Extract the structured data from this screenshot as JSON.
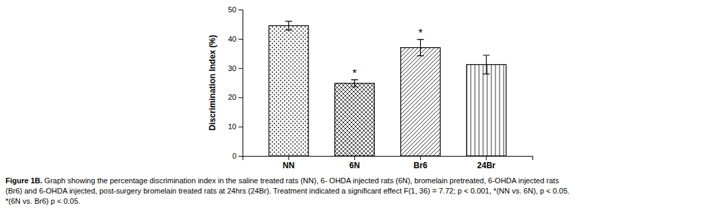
{
  "chart_data": {
    "type": "bar",
    "categories": [
      "NN",
      "6N",
      "Br6",
      "24Br"
    ],
    "values": [
      44.5,
      24.8,
      37.0,
      31.2
    ],
    "errors": [
      1.5,
      1.2,
      2.8,
      3.2
    ],
    "ylabel": "Discrimination Index (%)",
    "ylim": [
      0,
      50
    ],
    "yticks": [
      0,
      10,
      20,
      30,
      40,
      50
    ],
    "color": "white",
    "annotations": [
      {
        "category": "6N",
        "text": "*"
      },
      {
        "category": "Br6",
        "text": "*"
      }
    ],
    "caption": [
      "Figure 1B.",
      " Graph showing the percentage discrimination index in the saline treated rats (NN), 6- OHDA injected rats (6N), bromelain pretreated, 6-OHDA injected rats",
      "(Br6) and 6-OHDA injected, post-surgery bromelain treated rats at 24hrs (24Br). Treatment indicated a significant effect F(1, 36) = 7.72; p < 0.001, *(NN vs. 6N), p < 0.05.",
      "*(6N vs. Br6) p < 0.05."
    ]
  }
}
